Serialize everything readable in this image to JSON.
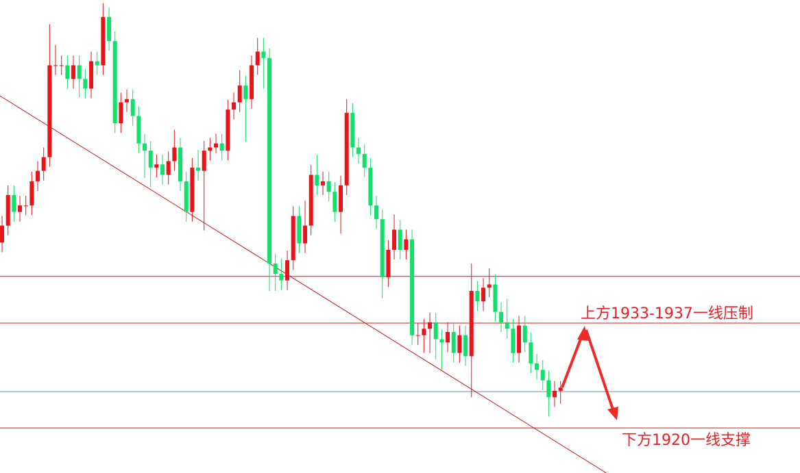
{
  "chart_data": {
    "type": "candlestick",
    "xlim": [
      -0.35,
      134.3
    ],
    "ylim": [
      1914.4,
      1973.1
    ],
    "up_color": "#e8141a",
    "down_color": "#12e06a",
    "ohlc": [
      [
        1943.0,
        1946.3,
        1941.8,
        1945.1
      ],
      [
        1945.1,
        1950.1,
        1943.9,
        1948.9
      ],
      [
        1948.9,
        1950.1,
        1945.6,
        1946.8
      ],
      [
        1946.8,
        1948.8,
        1945.6,
        1947.6
      ],
      [
        1947.6,
        1948.8,
        1946.4,
        1947.6
      ],
      [
        1947.6,
        1951.8,
        1946.4,
        1950.6
      ],
      [
        1950.6,
        1953.1,
        1949.4,
        1951.9
      ],
      [
        1951.9,
        1954.8,
        1950.7,
        1953.6
      ],
      [
        1953.6,
        1970.1,
        1952.4,
        1965.0
      ],
      [
        1965.0,
        1967.5,
        1963.8,
        1965.0
      ],
      [
        1965.0,
        1966.2,
        1963.8,
        1965.0
      ],
      [
        1965.0,
        1966.2,
        1962.1,
        1963.3
      ],
      [
        1963.3,
        1966.2,
        1962.1,
        1965.0
      ],
      [
        1965.0,
        1966.2,
        1961.0,
        1963.3
      ],
      [
        1963.3,
        1964.5,
        1960.9,
        1962.1
      ],
      [
        1962.1,
        1966.7,
        1960.9,
        1965.5
      ],
      [
        1965.5,
        1966.7,
        1963.8,
        1965.0
      ],
      [
        1965.0,
        1972.7,
        1963.8,
        1971.0
      ],
      [
        1971.0,
        1972.2,
        1966.8,
        1968.0
      ],
      [
        1968.0,
        1969.2,
        1956.6,
        1957.8
      ],
      [
        1957.8,
        1961.6,
        1956.6,
        1960.4
      ],
      [
        1960.4,
        1962.0,
        1959.2,
        1960.8
      ],
      [
        1960.8,
        1962.0,
        1957.5,
        1958.7
      ],
      [
        1958.7,
        1959.9,
        1954.1,
        1955.3
      ],
      [
        1955.3,
        1956.5,
        1951.0,
        1954.4
      ],
      [
        1954.4,
        1955.6,
        1949.9,
        1952.3
      ],
      [
        1952.3,
        1953.9,
        1951.1,
        1952.7
      ],
      [
        1952.7,
        1953.9,
        1950.2,
        1951.4
      ],
      [
        1951.4,
        1954.3,
        1950.2,
        1953.1
      ],
      [
        1953.1,
        1957.0,
        1951.9,
        1954.8
      ],
      [
        1954.8,
        1956.0,
        1949.4,
        1950.6
      ],
      [
        1950.6,
        1951.8,
        1945.6,
        1946.8
      ],
      [
        1946.8,
        1953.5,
        1945.6,
        1952.3
      ],
      [
        1952.3,
        1954.5,
        1950.7,
        1951.9
      ],
      [
        1951.9,
        1955.6,
        1944.5,
        1954.4
      ],
      [
        1954.4,
        1956.0,
        1953.2,
        1954.8
      ],
      [
        1954.8,
        1956.5,
        1954.1,
        1955.3
      ],
      [
        1955.3,
        1956.5,
        1953.2,
        1954.4
      ],
      [
        1954.4,
        1960.7,
        1953.2,
        1959.5
      ],
      [
        1959.5,
        1961.6,
        1958.3,
        1960.4
      ],
      [
        1960.4,
        1964.4,
        1959.2,
        1962.5
      ],
      [
        1962.5,
        1963.7,
        1955.5,
        1960.8
      ],
      [
        1960.8,
        1966.2,
        1959.6,
        1965.0
      ],
      [
        1965.0,
        1968.4,
        1963.8,
        1966.7
      ],
      [
        1966.7,
        1968.4,
        1962.1,
        1965.9
      ],
      [
        1965.9,
        1967.1,
        1937.0,
        1940.4
      ],
      [
        1940.4,
        1941.6,
        1937.0,
        1939.1
      ],
      [
        1939.1,
        1941.0,
        1937.1,
        1938.3
      ],
      [
        1938.3,
        1942.0,
        1937.1,
        1940.8
      ],
      [
        1940.8,
        1947.5,
        1939.6,
        1946.3
      ],
      [
        1946.3,
        1947.5,
        1941.7,
        1942.9
      ],
      [
        1942.9,
        1948.2,
        1941.7,
        1945.1
      ],
      [
        1945.1,
        1952.6,
        1943.9,
        1951.4
      ],
      [
        1951.4,
        1953.9,
        1948.9,
        1950.1
      ],
      [
        1950.1,
        1951.8,
        1948.9,
        1950.6
      ],
      [
        1950.6,
        1951.8,
        1948.1,
        1949.3
      ],
      [
        1949.3,
        1950.5,
        1945.6,
        1946.8
      ],
      [
        1946.8,
        1951.3,
        1944.1,
        1950.1
      ],
      [
        1950.1,
        1960.8,
        1948.9,
        1959.1
      ],
      [
        1959.1,
        1960.3,
        1953.6,
        1954.8
      ],
      [
        1954.8,
        1956.0,
        1952.8,
        1954.0
      ],
      [
        1954.0,
        1955.2,
        1951.1,
        1952.3
      ],
      [
        1952.3,
        1953.5,
        1946.4,
        1947.6
      ],
      [
        1947.6,
        1948.8,
        1944.7,
        1945.9
      ],
      [
        1945.9,
        1947.1,
        1936.1,
        1938.7
      ],
      [
        1938.7,
        1943.3,
        1937.5,
        1942.1
      ],
      [
        1942.1,
        1946.5,
        1940.9,
        1944.6
      ],
      [
        1944.6,
        1945.8,
        1940.9,
        1942.1
      ],
      [
        1942.1,
        1944.6,
        1940.9,
        1943.4
      ],
      [
        1943.4,
        1944.6,
        1930.3,
        1931.5
      ],
      [
        1931.5,
        1933.0,
        1930.3,
        1931.5
      ],
      [
        1931.5,
        1933.5,
        1929.3,
        1932.3
      ],
      [
        1932.3,
        1934.3,
        1929.3,
        1933.1
      ],
      [
        1933.1,
        1934.3,
        1928.5,
        1931.0
      ],
      [
        1931.0,
        1932.2,
        1927.2,
        1930.6
      ],
      [
        1930.6,
        1933.1,
        1929.4,
        1931.9
      ],
      [
        1931.9,
        1933.1,
        1928.1,
        1929.3
      ],
      [
        1929.3,
        1932.7,
        1928.1,
        1931.5
      ],
      [
        1931.5,
        1932.7,
        1927.7,
        1928.9
      ],
      [
        1928.9,
        1940.4,
        1923.8,
        1937.0
      ],
      [
        1937.0,
        1938.2,
        1934.5,
        1935.7
      ],
      [
        1935.7,
        1938.6,
        1934.5,
        1937.4
      ],
      [
        1937.4,
        1939.8,
        1936.2,
        1937.8
      ],
      [
        1937.8,
        1939.0,
        1933.2,
        1934.4
      ],
      [
        1934.4,
        1935.6,
        1931.9,
        1933.1
      ],
      [
        1933.1,
        1936.0,
        1931.1,
        1932.3
      ],
      [
        1932.3,
        1933.5,
        1928.1,
        1929.3
      ],
      [
        1929.3,
        1933.9,
        1928.1,
        1932.7
      ],
      [
        1932.7,
        1933.9,
        1929.4,
        1930.6
      ],
      [
        1930.6,
        1931.8,
        1926.8,
        1928.0
      ],
      [
        1928.0,
        1929.2,
        1926.0,
        1927.2
      ],
      [
        1927.2,
        1928.4,
        1924.7,
        1925.9
      ],
      [
        1925.9,
        1927.1,
        1921.4,
        1923.8
      ],
      [
        1923.8,
        1925.8,
        1922.6,
        1924.6
      ],
      [
        1924.6,
        1925.8,
        1923.0,
        1925.0
      ]
    ],
    "levels": [
      {
        "value": 1938.8,
        "color": "#e01818"
      },
      {
        "value": 1933.0,
        "color": "#e01818"
      },
      {
        "value": 1924.5,
        "color": "#6b8fa8"
      },
      {
        "value": 1920.0,
        "color": "#e01818"
      }
    ],
    "trendline": {
      "x": [
        -0.35,
        101.7
      ],
      "y": [
        1961.2,
        1914.4
      ],
      "color": "#d01818"
    },
    "annotations": [
      "上方1933-1937一线压制",
      "下方1920一线支撑"
    ]
  }
}
